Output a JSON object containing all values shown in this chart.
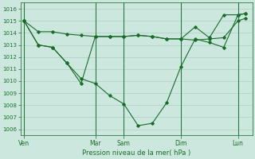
{
  "xlabel": "Pression niveau de la mer( hPa )",
  "background_color": "#cce8de",
  "grid_color": "#aacfc4",
  "line_color": "#1a6b2a",
  "vline_color": "#2d7a40",
  "ylim": [
    1005.5,
    1016.5
  ],
  "yticks": [
    1006,
    1007,
    1008,
    1009,
    1010,
    1011,
    1012,
    1013,
    1014,
    1015,
    1016
  ],
  "day_labels": [
    "Ven",
    "Mar",
    "Sam",
    "Dim",
    "Lun"
  ],
  "day_x": [
    0,
    10,
    14,
    22,
    30
  ],
  "xlim": [
    -0.5,
    32
  ],
  "line1_x": [
    0,
    2,
    4,
    6,
    8,
    10,
    12,
    14,
    16,
    18,
    20,
    22,
    24,
    26,
    28,
    30,
    31
  ],
  "line1_y": [
    1015.0,
    1014.1,
    1014.1,
    1013.9,
    1013.8,
    1013.7,
    1013.7,
    1013.7,
    1013.8,
    1013.7,
    1013.5,
    1013.5,
    1013.4,
    1013.5,
    1013.6,
    1015.0,
    1015.2
  ],
  "line2_x": [
    0,
    2,
    4,
    6,
    8,
    10,
    12,
    14,
    16,
    18,
    20,
    22,
    24,
    26,
    28,
    30,
    31
  ],
  "line2_y": [
    1015.0,
    1013.0,
    1012.8,
    1011.5,
    1010.2,
    1009.8,
    1008.8,
    1008.1,
    1006.3,
    1006.5,
    1008.2,
    1011.2,
    1013.5,
    1013.2,
    1012.8,
    1015.5,
    1015.6
  ],
  "line3_x": [
    0,
    2,
    4,
    6,
    8,
    10,
    12,
    14,
    16,
    18,
    20,
    22,
    24,
    26,
    28,
    30,
    31
  ],
  "line3_y": [
    1015.0,
    1013.0,
    1012.8,
    1011.5,
    1009.8,
    1013.7,
    1013.7,
    1013.7,
    1013.8,
    1013.7,
    1013.5,
    1013.5,
    1014.5,
    1013.6,
    1015.5,
    1015.5,
    1015.6
  ]
}
